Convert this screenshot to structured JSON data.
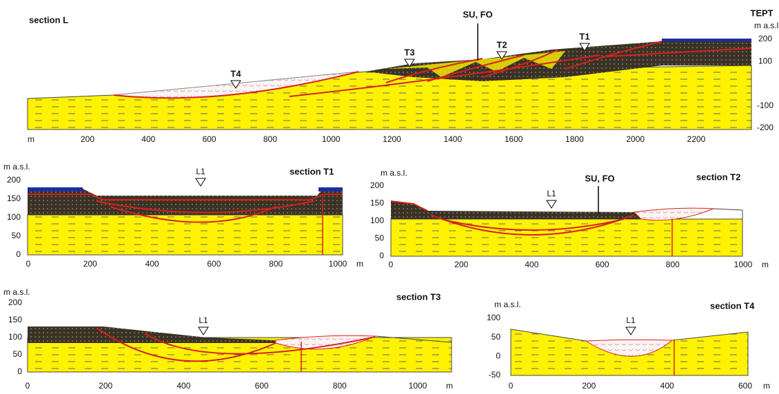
{
  "sections": [
    {
      "title": "section L",
      "corner_label": "TEPT",
      "well": "SU, FO",
      "x_unit": "m",
      "y_unit": "m a.s.l.",
      "xticks": [
        200,
        400,
        600,
        800,
        1000,
        1200,
        1400,
        1600,
        1800,
        2000,
        2200
      ],
      "yticks": [
        200,
        100,
        -100,
        -200
      ],
      "markers": [
        "T4",
        "T3",
        "T2",
        "T1"
      ]
    },
    {
      "title": "section T1",
      "x_unit": "m",
      "y_unit": "m a.s.l.",
      "xticks": [
        0,
        200,
        400,
        600,
        800,
        1000
      ],
      "yticks": [
        200,
        150,
        100,
        50,
        0
      ],
      "markers": [
        "L1"
      ]
    },
    {
      "title": "section T2",
      "well": "SU, FO",
      "x_unit": "m",
      "y_unit": "m a.s.l.",
      "xticks": [
        0,
        200,
        400,
        600,
        800,
        1000
      ],
      "yticks": [
        200,
        150,
        100,
        50,
        0
      ],
      "markers": [
        "L1"
      ]
    },
    {
      "title": "section T3",
      "x_unit": "m",
      "y_unit": "m a.s.l.",
      "xticks": [
        0,
        200,
        400,
        600,
        800,
        1000
      ],
      "yticks": [
        200,
        150,
        100,
        50,
        0
      ],
      "markers": [
        "L1"
      ]
    },
    {
      "title": "section T4",
      "x_unit": "m",
      "y_unit": "m a.s.l.",
      "xticks": [
        0,
        200,
        400,
        600
      ],
      "yticks": [
        100,
        50,
        0,
        -50
      ],
      "markers": [
        "L1"
      ]
    }
  ]
}
